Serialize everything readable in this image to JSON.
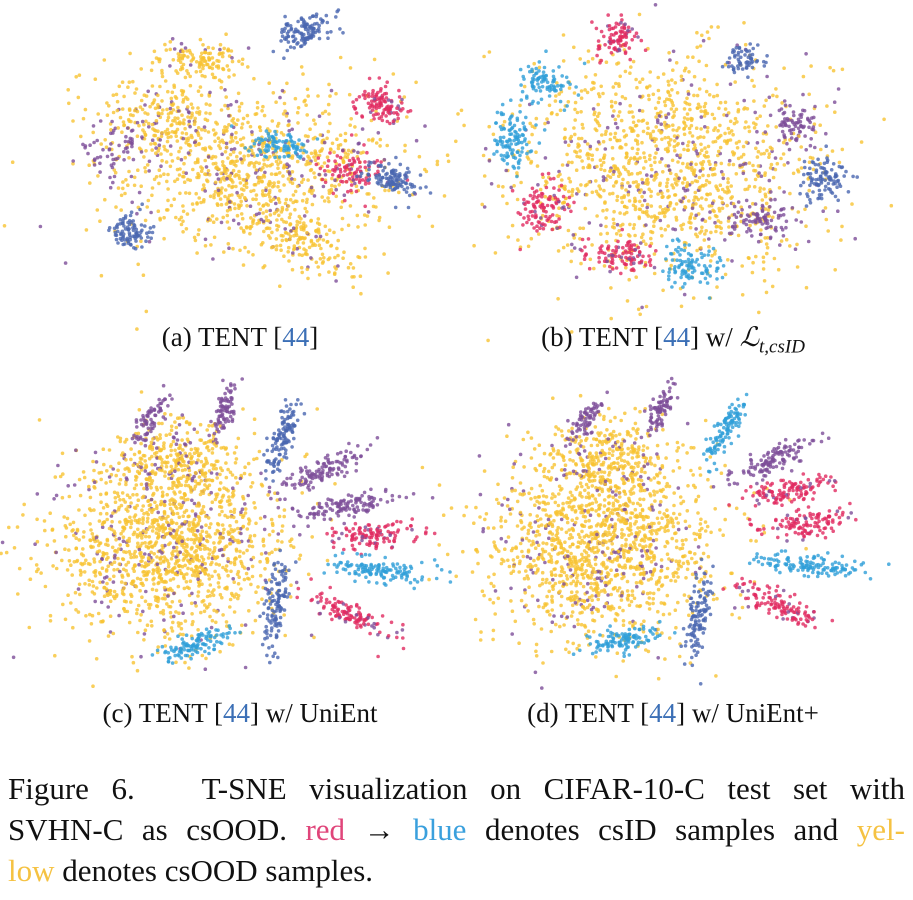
{
  "panels": [
    {
      "prefix": "(a) TENT [",
      "cite": "44",
      "suffix": "]"
    },
    {
      "prefix": "(b) TENT [",
      "cite": "44",
      "suffix": "] w/ ",
      "math": "ℒ",
      "sub": "t,csID"
    },
    {
      "prefix": "(c) TENT [",
      "cite": "44",
      "suffix": "] w/ UniEnt"
    },
    {
      "prefix": "(d) TENT [",
      "cite": "44",
      "suffix": "] w/ UniEnt+"
    }
  ],
  "caption": {
    "lines": [
      [
        "Figure 6.",
        "T-SNE visualization on CIFAR-10-C test set with"
      ],
      [
        "SVHN-C as csOOD.",
        "red",
        "→",
        "blue",
        "denotes csID samples and",
        "yel-"
      ],
      [
        "low",
        "denotes csOOD samples."
      ]
    ]
  }
}
